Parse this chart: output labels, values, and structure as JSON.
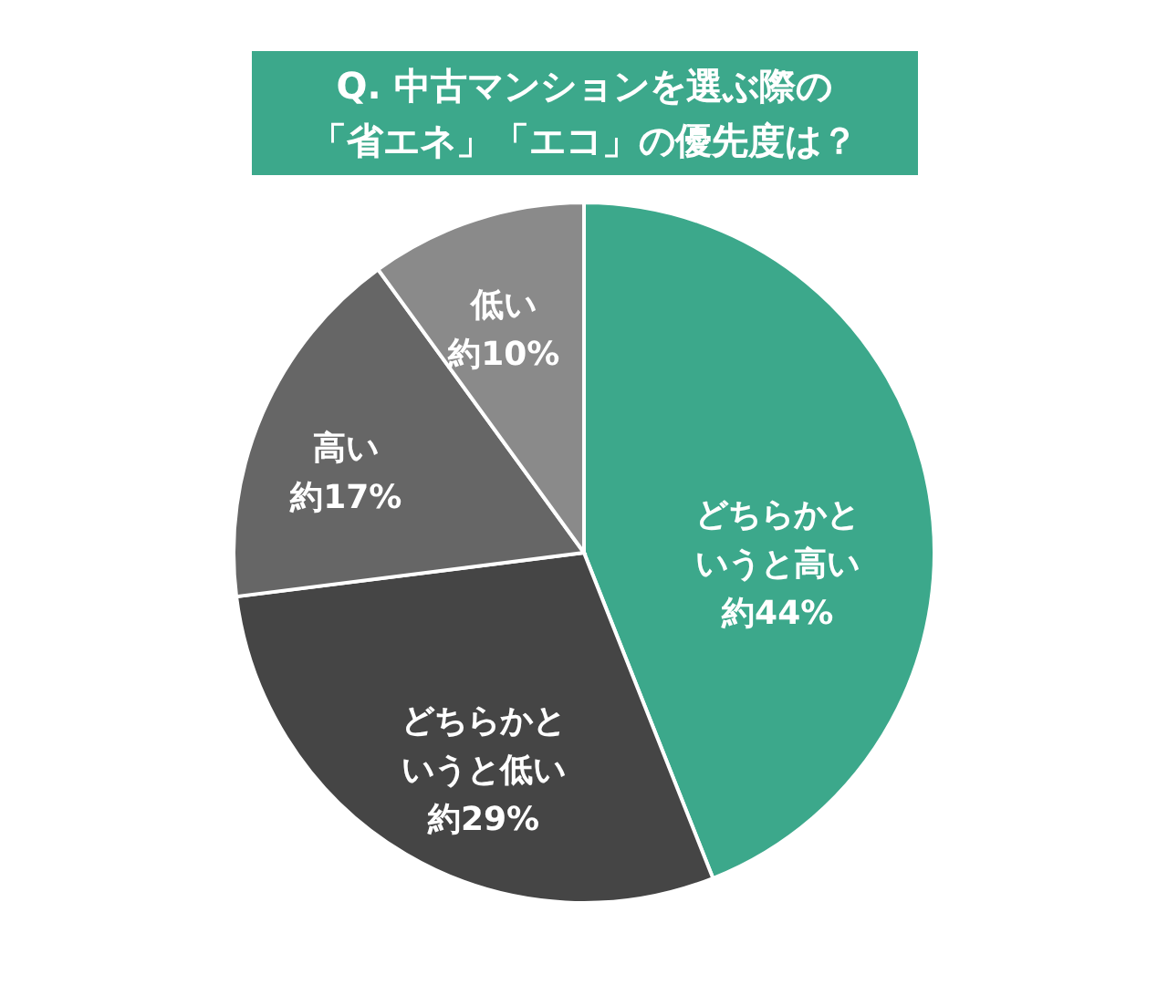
{
  "chart_data": {
    "type": "pie",
    "title": "Q. 中古マンションを選ぶ際の「省エネ」「エコ」の優先度は？",
    "categories": [
      "どちらかというと高い",
      "どちらかというと低い",
      "高い",
      "低い"
    ],
    "values": [
      44,
      29,
      17,
      10
    ],
    "colors": [
      "#3ca88b",
      "#454545",
      "#666666",
      "#8a8a8a"
    ],
    "value_labels": [
      "約44%",
      "約29%",
      "約17%",
      "約10%"
    ],
    "legend": false
  }
}
